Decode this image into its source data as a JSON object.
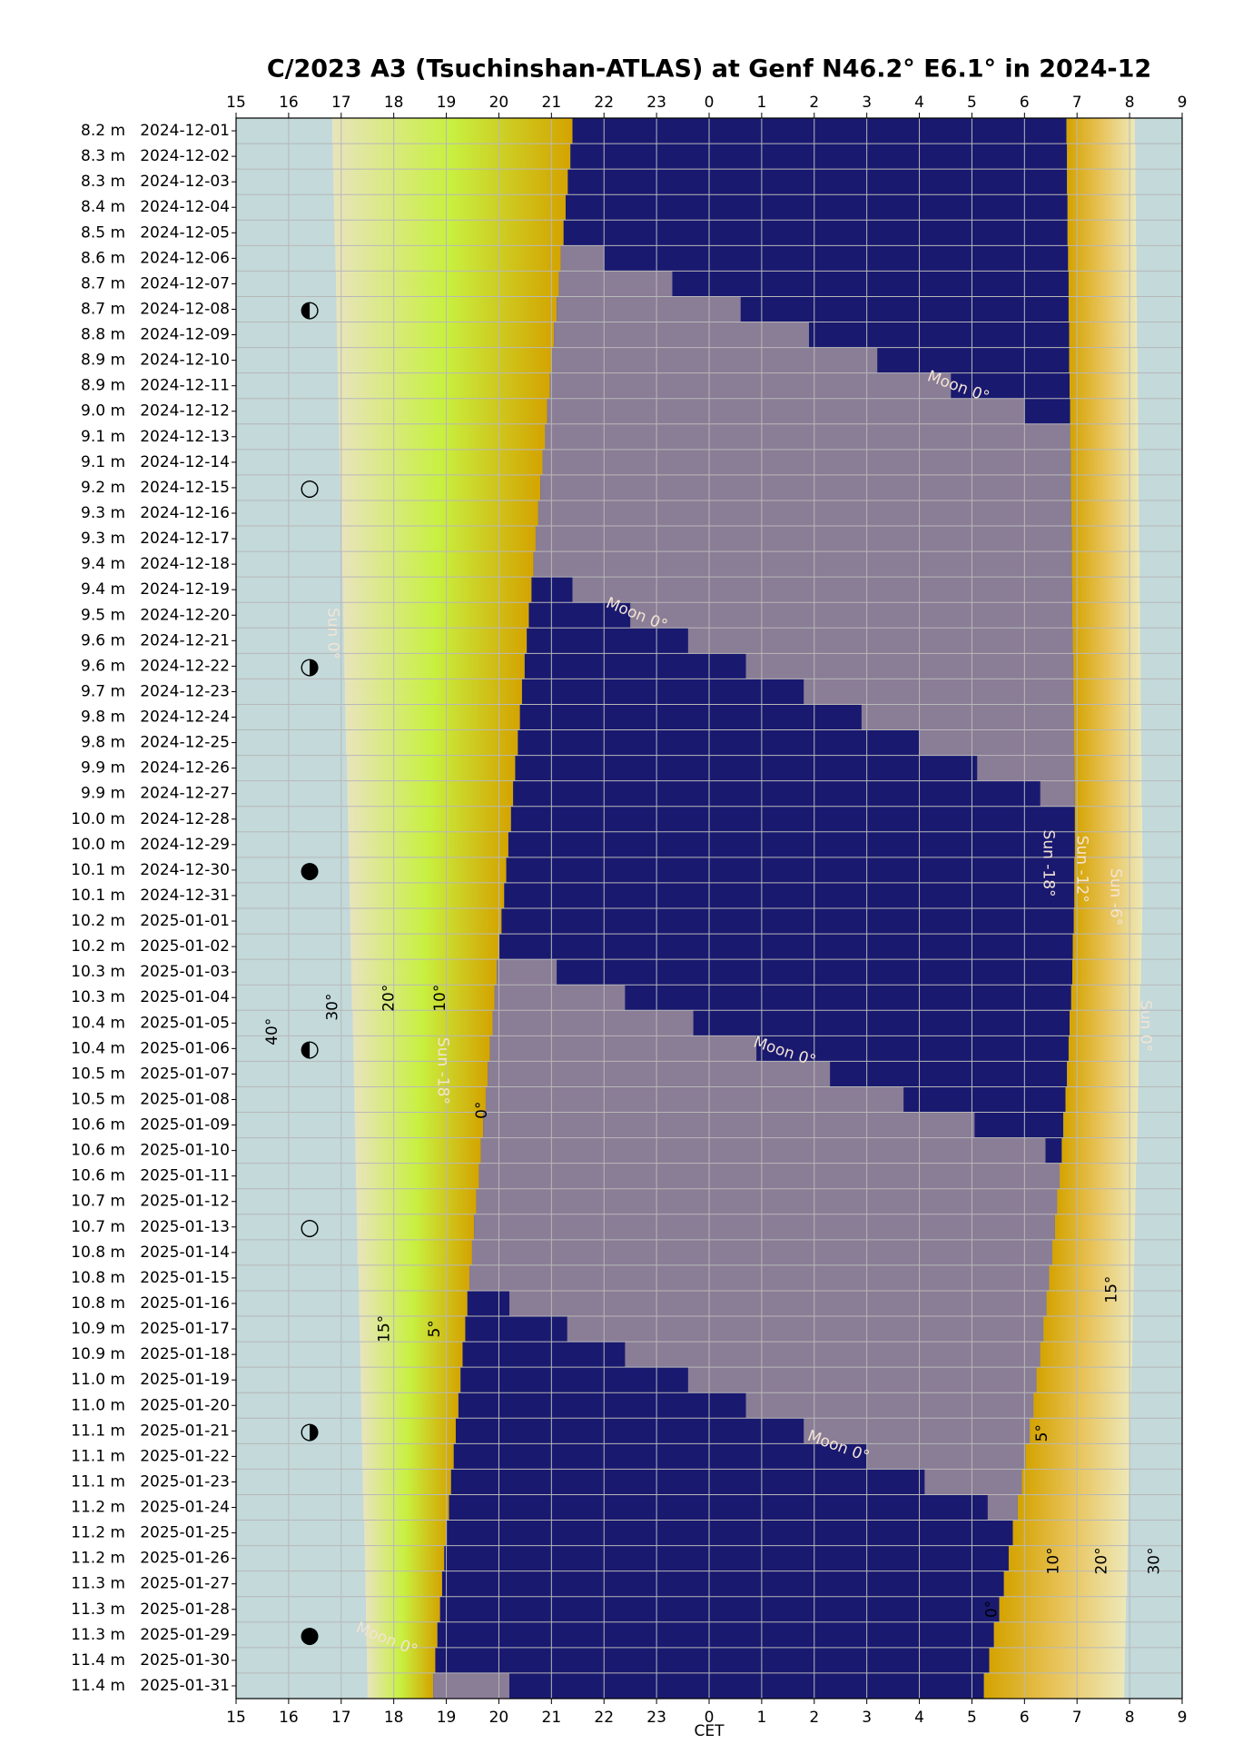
{
  "chart_data": {
    "type": "timeline",
    "title": "C/2023 A3 (Tsuchinshan-ATLAS) at Genf N46.2° E6.1° in 2024-12",
    "xlabel": "CET",
    "xlim": [
      15,
      33
    ],
    "xticks": [
      15,
      16,
      17,
      18,
      19,
      20,
      21,
      22,
      23,
      {
        "value": 24,
        "label": "0"
      },
      {
        "value": 25,
        "label": "1"
      },
      {
        "value": 26,
        "label": "2"
      },
      {
        "value": 27,
        "label": "3"
      },
      {
        "value": 28,
        "label": "4"
      },
      {
        "value": 29,
        "label": "5"
      },
      {
        "value": 30,
        "label": "6"
      },
      {
        "value": 31,
        "label": "7"
      },
      {
        "value": 32,
        "label": "8"
      },
      {
        "value": 33,
        "label": "9"
      }
    ],
    "grid": true,
    "background": "#c3d9da",
    "categories": [
      "2024-12-01",
      "2024-12-02",
      "2024-12-03",
      "2024-12-04",
      "2024-12-05",
      "2024-12-06",
      "2024-12-07",
      "2024-12-08",
      "2024-12-09",
      "2024-12-10",
      "2024-12-11",
      "2024-12-12",
      "2024-12-13",
      "2024-12-14",
      "2024-12-15",
      "2024-12-16",
      "2024-12-17",
      "2024-12-18",
      "2024-12-19",
      "2024-12-20",
      "2024-12-21",
      "2024-12-22",
      "2024-12-23",
      "2024-12-24",
      "2024-12-25",
      "2024-12-26",
      "2024-12-27",
      "2024-12-28",
      "2024-12-29",
      "2024-12-30",
      "2024-12-31",
      "2025-01-01",
      "2025-01-02",
      "2025-01-03",
      "2025-01-04",
      "2025-01-05",
      "2025-01-06",
      "2025-01-07",
      "2025-01-08",
      "2025-01-09",
      "2025-01-10",
      "2025-01-11",
      "2025-01-12",
      "2025-01-13",
      "2025-01-14",
      "2025-01-15",
      "2025-01-16",
      "2025-01-17",
      "2025-01-18",
      "2025-01-19",
      "2025-01-20",
      "2025-01-21",
      "2025-01-22",
      "2025-01-23",
      "2025-01-24",
      "2025-01-25",
      "2025-01-26",
      "2025-01-27",
      "2025-01-28",
      "2025-01-29",
      "2025-01-30",
      "2025-01-31"
    ],
    "magnitude_labels": [
      "8.2 m",
      "8.3 m",
      "8.3 m",
      "8.4 m",
      "8.5 m",
      "8.6 m",
      "8.7 m",
      "8.7 m",
      "8.8 m",
      "8.9 m",
      "8.9 m",
      "9.0 m",
      "9.1 m",
      "9.1 m",
      "9.2 m",
      "9.3 m",
      "9.3 m",
      "9.4 m",
      "9.4 m",
      "9.5 m",
      "9.6 m",
      "9.6 m",
      "9.7 m",
      "9.8 m",
      "9.8 m",
      "9.9 m",
      "9.9 m",
      "10.0 m",
      "10.0 m",
      "10.1 m",
      "10.1 m",
      "10.2 m",
      "10.2 m",
      "10.3 m",
      "10.3 m",
      "10.4 m",
      "10.4 m",
      "10.5 m",
      "10.5 m",
      "10.6 m",
      "10.6 m",
      "10.6 m",
      "10.7 m",
      "10.7 m",
      "10.8 m",
      "10.8 m",
      "10.8 m",
      "10.9 m",
      "10.9 m",
      "11.0 m",
      "11.0 m",
      "11.1 m",
      "11.1 m",
      "11.1 m",
      "11.2 m",
      "11.2 m",
      "11.2 m",
      "11.3 m",
      "11.3 m",
      "11.3 m",
      "11.4 m",
      "11.4 m"
    ],
    "boundaries": [
      [
        16.83,
        16.84,
        16.85,
        16.86,
        16.87,
        16.89,
        16.9,
        16.91,
        16.92,
        16.93,
        16.94,
        16.95,
        16.96,
        16.97,
        16.98,
        17.0,
        17.01,
        17.02,
        17.03,
        17.04,
        17.05,
        17.06,
        17.07,
        17.08,
        17.09,
        17.11,
        17.12,
        17.13,
        17.14,
        17.15,
        17.16,
        17.17,
        17.18,
        17.19,
        17.2,
        17.22,
        17.23,
        17.24,
        17.25,
        17.26,
        17.27,
        17.28,
        17.29,
        17.3,
        17.31,
        17.33,
        17.34,
        17.35,
        17.36,
        17.37,
        17.38,
        17.39,
        17.4,
        17.41,
        17.42,
        17.44,
        17.45,
        17.46,
        17.47,
        17.48,
        17.49,
        17.5
      ],
      [
        21.4,
        21.36,
        21.31,
        21.27,
        21.23,
        21.18,
        21.14,
        21.1,
        21.05,
        21.01,
        20.97,
        20.92,
        20.88,
        20.83,
        20.79,
        20.75,
        20.7,
        20.66,
        20.62,
        20.57,
        20.53,
        20.49,
        20.44,
        20.4,
        20.36,
        20.31,
        20.27,
        20.23,
        20.18,
        20.14,
        20.1,
        20.05,
        20.01,
        19.96,
        19.92,
        19.88,
        19.83,
        19.79,
        19.75,
        19.7,
        19.66,
        19.62,
        19.57,
        19.53,
        19.49,
        19.44,
        19.4,
        19.36,
        19.31,
        19.27,
        19.23,
        19.18,
        19.14,
        19.09,
        19.05,
        19.01,
        18.96,
        18.92,
        18.88,
        18.83,
        18.79,
        18.75
      ],
      [
        30.8,
        30.81,
        30.81,
        30.82,
        30.82,
        30.83,
        30.84,
        30.84,
        30.85,
        30.85,
        30.86,
        30.87,
        30.87,
        30.88,
        30.88,
        30.89,
        30.9,
        30.9,
        30.91,
        30.91,
        30.92,
        30.93,
        30.93,
        30.94,
        30.94,
        30.95,
        30.96,
        30.96,
        30.96,
        30.95,
        30.95,
        30.94,
        30.92,
        30.91,
        30.89,
        30.86,
        30.84,
        30.81,
        30.78,
        30.74,
        30.71,
        30.67,
        30.62,
        30.58,
        30.53,
        30.47,
        30.42,
        30.36,
        30.3,
        30.23,
        30.17,
        30.1,
        30.02,
        29.95,
        29.87,
        29.78,
        29.7,
        29.61,
        29.52,
        29.42,
        29.33,
        29.23
      ],
      [
        32.1,
        32.11,
        32.11,
        32.12,
        32.12,
        32.13,
        32.13,
        32.14,
        32.14,
        32.15,
        32.15,
        32.16,
        32.16,
        32.17,
        32.17,
        32.18,
        32.18,
        32.19,
        32.19,
        32.2,
        32.2,
        32.21,
        32.21,
        32.22,
        32.22,
        32.23,
        32.23,
        32.24,
        32.24,
        32.25,
        32.25,
        32.24,
        32.23,
        32.22,
        32.2,
        32.19,
        32.18,
        32.17,
        32.16,
        32.15,
        32.14,
        32.12,
        32.11,
        32.1,
        32.09,
        32.08,
        32.07,
        32.06,
        32.05,
        32.03,
        32.02,
        32.01,
        32.0,
        31.99,
        31.98,
        31.97,
        31.96,
        31.95,
        31.93,
        31.92,
        31.91,
        31.9
      ]
    ],
    "bands": [
      {
        "colors": [
          "#e8e4bc",
          "#c8f040",
          "#d4a300"
        ]
      },
      {
        "colors": [
          "#191970"
        ]
      },
      {
        "colors": [
          "#d4a300",
          "#e8c35a",
          "#ede8b8"
        ]
      }
    ],
    "moon": {
      "color": "#8a7d96",
      "start": [
        null,
        null,
        null,
        null,
        null,
        21.18,
        21.14,
        21.1,
        21.05,
        21.01,
        20.97,
        20.92,
        20.88,
        20.83,
        20.79,
        20.75,
        20.7,
        20.66,
        21.4,
        22.5,
        23.6,
        24.7,
        25.8,
        26.9,
        28.0,
        29.1,
        30.3,
        null,
        null,
        null,
        null,
        null,
        null,
        19.96,
        19.92,
        19.88,
        19.83,
        19.79,
        19.75,
        19.7,
        19.66,
        19.62,
        19.57,
        19.53,
        19.49,
        19.44,
        20.2,
        21.3,
        22.4,
        23.6,
        24.7,
        25.8,
        27.0,
        28.1,
        29.3,
        null,
        null,
        null,
        null,
        null,
        null,
        18.75
      ],
      "end": [
        null,
        null,
        null,
        null,
        null,
        22.0,
        23.3,
        24.6,
        25.9,
        27.2,
        28.6,
        30.0,
        30.87,
        30.88,
        30.88,
        30.89,
        30.9,
        30.9,
        30.91,
        30.91,
        30.92,
        30.93,
        30.93,
        30.94,
        30.94,
        30.95,
        30.96,
        null,
        null,
        null,
        null,
        null,
        null,
        21.1,
        22.4,
        23.7,
        24.9,
        26.3,
        27.7,
        29.05,
        30.4,
        30.67,
        30.62,
        30.58,
        30.53,
        30.47,
        30.42,
        30.36,
        30.3,
        30.23,
        30.17,
        30.1,
        30.02,
        29.95,
        29.87,
        null,
        null,
        null,
        null,
        null,
        null,
        20.2
      ]
    },
    "moon_phases": [
      {
        "date": "2024-12-08",
        "symbol": "◐"
      },
      {
        "date": "2024-12-15",
        "symbol": "○"
      },
      {
        "date": "2024-12-22",
        "symbol": "◑"
      },
      {
        "date": "2024-12-30",
        "symbol": "●"
      },
      {
        "date": "2025-01-06",
        "symbol": "◐"
      },
      {
        "date": "2025-01-13",
        "symbol": "○"
      },
      {
        "date": "2025-01-21",
        "symbol": "◑"
      },
      {
        "date": "2025-01-29",
        "symbol": "●"
      }
    ],
    "annotations": [
      "Moon 0°",
      "Moon 0°",
      "Moon 0°",
      "Moon 0°",
      "Moon 0°",
      "Sun -18°",
      "Sun -12°",
      "Sun -6°",
      "Sun 0°",
      "Sun 0°",
      "Sun -18°",
      "40°",
      "30°",
      "20°",
      "10°",
      "0°",
      "15°",
      "5°",
      "15°",
      "5°",
      "10°",
      "20°",
      "30°",
      "0°"
    ]
  }
}
